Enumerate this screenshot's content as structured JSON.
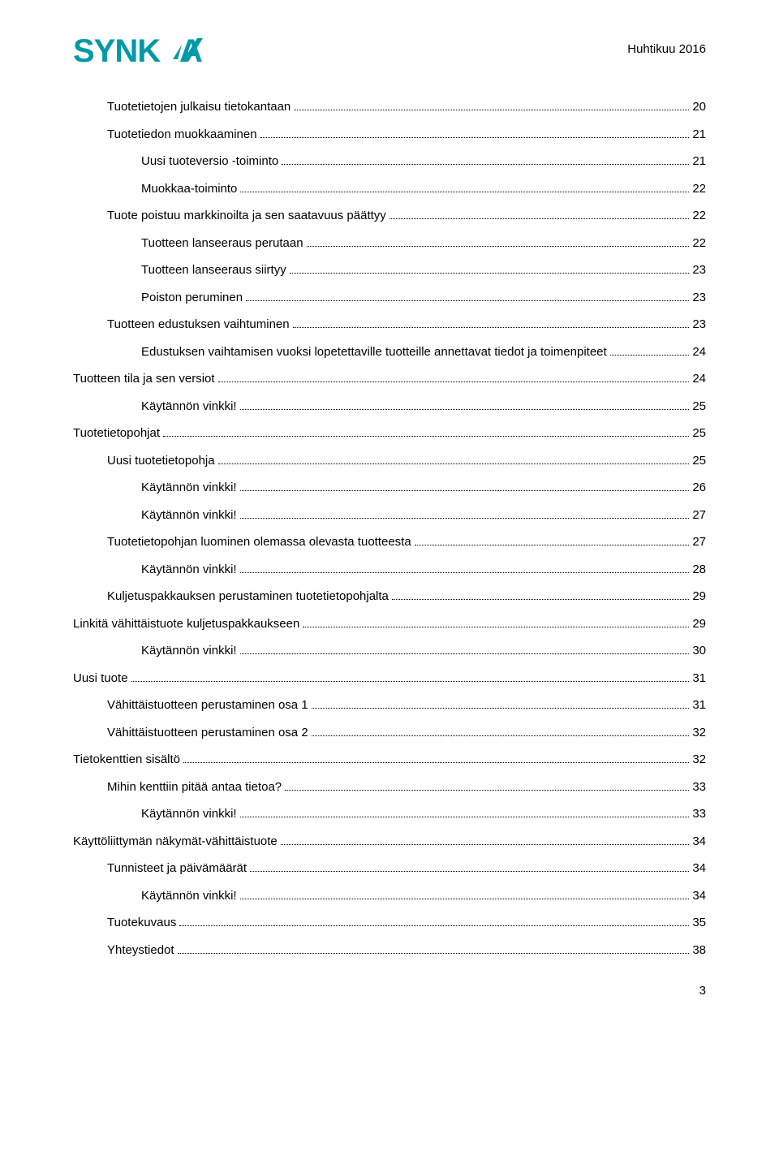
{
  "header": {
    "date_label": "Huhtikuu 2016",
    "logo_text": "SYNKKA",
    "logo_color": "#009aa6"
  },
  "page_number": "3",
  "toc": [
    {
      "level": 1,
      "title": "Tuotetietojen julkaisu tietokantaan",
      "page": "20"
    },
    {
      "level": 1,
      "title": "Tuotetiedon muokkaaminen",
      "page": "21"
    },
    {
      "level": 2,
      "title": "Uusi tuoteversio -toiminto",
      "page": "21"
    },
    {
      "level": 2,
      "title": "Muokkaa-toiminto",
      "page": "22"
    },
    {
      "level": 1,
      "title": "Tuote poistuu markkinoilta ja sen saatavuus päättyy",
      "page": "22"
    },
    {
      "level": 2,
      "title": "Tuotteen lanseeraus perutaan",
      "page": "22"
    },
    {
      "level": 2,
      "title": "Tuotteen lanseeraus siirtyy",
      "page": "23"
    },
    {
      "level": 2,
      "title": "Poiston peruminen",
      "page": "23"
    },
    {
      "level": 1,
      "title": "Tuotteen edustuksen vaihtuminen",
      "page": "23"
    },
    {
      "level": 2,
      "title": "Edustuksen vaihtamisen vuoksi lopetettaville tuotteille annettavat tiedot ja toimenpiteet",
      "page": "24"
    },
    {
      "level": 0,
      "title": "Tuotteen tila ja sen versiot",
      "page": "24"
    },
    {
      "level": 2,
      "title": "Käytännön vinkki!",
      "page": "25"
    },
    {
      "level": 0,
      "title": "Tuotetietopohjat",
      "page": "25"
    },
    {
      "level": 1,
      "title": "Uusi tuotetietopohja",
      "page": "25"
    },
    {
      "level": 2,
      "title": "Käytännön vinkki!",
      "page": "26"
    },
    {
      "level": 2,
      "title": "Käytännön vinkki!",
      "page": "27"
    },
    {
      "level": 1,
      "title": "Tuotetietopohjan luominen olemassa olevasta tuotteesta",
      "page": "27"
    },
    {
      "level": 2,
      "title": "Käytännön vinkki!",
      "page": "28"
    },
    {
      "level": 1,
      "title": "Kuljetuspakkauksen perustaminen tuotetietopohjalta",
      "page": "29"
    },
    {
      "level": 0,
      "title": "Linkitä vähittäistuote kuljetuspakkaukseen",
      "page": "29"
    },
    {
      "level": 2,
      "title": "Käytännön vinkki!",
      "page": "30"
    },
    {
      "level": 0,
      "title": "Uusi tuote",
      "page": "31"
    },
    {
      "level": 1,
      "title": "Vähittäistuotteen perustaminen osa 1",
      "page": "31"
    },
    {
      "level": 1,
      "title": "Vähittäistuotteen perustaminen osa 2",
      "page": "32"
    },
    {
      "level": 0,
      "title": "Tietokenttien sisältö",
      "page": "32"
    },
    {
      "level": 1,
      "title": "Mihin kenttiin pitää antaa tietoa?",
      "page": "33"
    },
    {
      "level": 2,
      "title": "Käytännön vinkki!",
      "page": "33"
    },
    {
      "level": 0,
      "title": "Käyttöliittymän näkymät-vähittäistuote",
      "page": "34"
    },
    {
      "level": 1,
      "title": "Tunnisteet ja päivämäärät",
      "page": "34"
    },
    {
      "level": 2,
      "title": "Käytännön vinkki!",
      "page": "34"
    },
    {
      "level": 1,
      "title": "Tuotekuvaus",
      "page": "35"
    },
    {
      "level": 1,
      "title": "Yhteystiedot",
      "page": "38"
    }
  ]
}
